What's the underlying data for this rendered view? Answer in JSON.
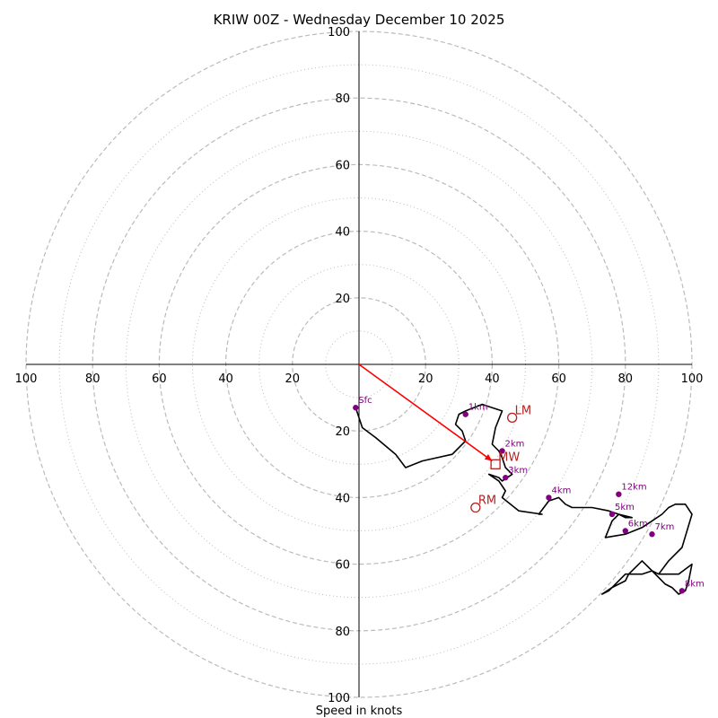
{
  "chart_data": {
    "type": "hodograph",
    "title": "KRIW 00Z - Wednesday December 10 2025",
    "xlabel": "Speed in knots",
    "max_speed": 100,
    "ring_major": [
      20,
      40,
      60,
      80,
      100
    ],
    "ring_minor": [
      10,
      30,
      50,
      70,
      90
    ],
    "tick_labels": {
      "x_left": [
        "100",
        "80",
        "60",
        "40",
        "20"
      ],
      "x_right": [
        "20",
        "40",
        "60",
        "80",
        "100"
      ],
      "y_up": [
        "20",
        "40",
        "60",
        "80",
        "100"
      ],
      "y_down": [
        "20",
        "40",
        "60",
        "80",
        "100"
      ]
    },
    "trace": {
      "name": "wind profile",
      "u": [
        -1,
        0,
        1,
        5,
        11,
        14,
        19,
        28,
        32,
        31,
        29,
        30,
        32,
        37,
        40,
        43,
        41,
        40,
        42,
        43,
        44,
        46,
        43,
        42,
        39,
        42,
        44,
        43,
        48,
        55,
        54,
        57,
        60,
        62,
        64,
        70,
        75,
        78,
        80,
        82,
        78,
        76,
        74,
        80,
        85,
        88,
        91,
        93,
        95,
        98,
        100,
        97,
        93,
        90,
        88,
        85,
        81,
        80,
        76,
        73,
        75,
        80,
        85,
        88,
        90,
        92,
        94,
        96,
        98,
        99,
        100,
        96,
        90
      ],
      "v": [
        -13,
        -16,
        -19,
        -22,
        -27,
        -31,
        -29,
        -27,
        -23,
        -20,
        -18,
        -15,
        -14,
        -12,
        -13,
        -14,
        -19,
        -24,
        -26,
        -28,
        -31,
        -33,
        -35,
        -34,
        -33,
        -35,
        -38,
        -40,
        -44,
        -45,
        -45,
        -41,
        -40,
        -42,
        -43,
        -43,
        -44,
        -45,
        -46,
        -46,
        -45,
        -47,
        -52,
        -51,
        -49,
        -47,
        -45,
        -43,
        -42,
        -42,
        -45,
        -55,
        -59,
        -63,
        -62,
        -59,
        -63,
        -65,
        -67,
        -69,
        -68,
        -63,
        -63,
        -62,
        -64,
        -66,
        -67,
        -69,
        -68,
        -65,
        -60,
        -63,
        -63
      ]
    },
    "levels": [
      {
        "label": "Sfc",
        "u": -1,
        "v": -13
      },
      {
        "label": "1km",
        "u": 32,
        "v": -15
      },
      {
        "label": "2km",
        "u": 43,
        "v": -26
      },
      {
        "label": "3km",
        "u": 44,
        "v": -34
      },
      {
        "label": "4km",
        "u": 57,
        "v": -40
      },
      {
        "label": "5km",
        "u": 76,
        "v": -45
      },
      {
        "label": "6km",
        "u": 80,
        "v": -50
      },
      {
        "label": "7km",
        "u": 88,
        "v": -51
      },
      {
        "label": "8km",
        "u": 97,
        "v": -68
      },
      {
        "label": "12km",
        "u": 78,
        "v": -39
      }
    ],
    "storm_motion": [
      {
        "label": "LM",
        "u": 46,
        "v": -16,
        "marker": "circle"
      },
      {
        "label": "RM",
        "u": 35,
        "v": -43,
        "marker": "circle"
      },
      {
        "label": "MW",
        "u": 41,
        "v": -30,
        "marker": "square"
      }
    ],
    "motion_vector": {
      "u": 40,
      "v": -29
    },
    "colors": {
      "trace": "#000000",
      "levels": "#800080",
      "motion": "#b22222",
      "vector": "#ff0000",
      "grid": "#bbbbbb"
    }
  }
}
